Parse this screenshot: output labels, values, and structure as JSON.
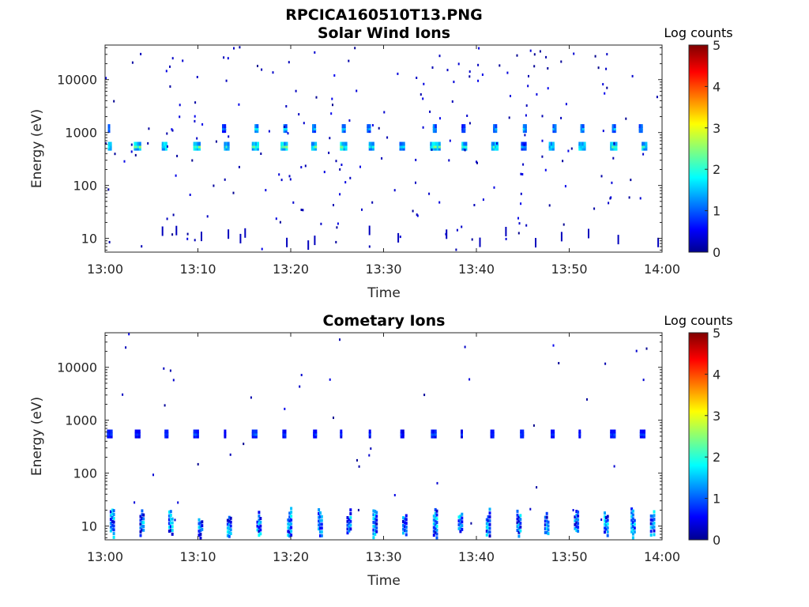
{
  "figure_title": "RPCICA160510T13.PNG",
  "chart_data": [
    {
      "type": "heatmap",
      "title": "Solar Wind Ions",
      "xlabel": "Time",
      "ylabel": "Energy (eV)",
      "x_ticks": [
        "13:00",
        "13:10",
        "13:20",
        "13:30",
        "13:40",
        "13:50",
        "14:00"
      ],
      "xlim": [
        "13:00",
        "14:00"
      ],
      "y_scale": "log",
      "y_ticks": [
        10,
        100,
        1000,
        10000
      ],
      "y_tick_labels": [
        "10",
        "100",
        "1000",
        "10000"
      ],
      "ylim": [
        5.5,
        45000
      ],
      "colorbar": {
        "label": "Log counts",
        "range": [
          0,
          5
        ],
        "ticks": [
          "0",
          "1",
          "2",
          "3",
          "4",
          "5"
        ],
        "colormap": "jet"
      },
      "bursts": [
        {
          "t": 0.3,
          "e": 600,
          "w": 0.4,
          "v": 2.0
        },
        {
          "t": 0.3,
          "e": 1300,
          "w": 0.25,
          "v": 1.6
        },
        {
          "t": 3.1,
          "e": 600,
          "w": 0.7,
          "v": 2.3
        },
        {
          "t": 6.1,
          "e": 600,
          "w": 0.6,
          "v": 2.2
        },
        {
          "t": 9.5,
          "e": 600,
          "w": 0.8,
          "v": 2.3
        },
        {
          "t": 12.8,
          "e": 600,
          "w": 0.5,
          "v": 2.0
        },
        {
          "t": 12.6,
          "e": 1300,
          "w": 0.3,
          "v": 1.2
        },
        {
          "t": 15.8,
          "e": 600,
          "w": 0.7,
          "v": 2.2
        },
        {
          "t": 16.1,
          "e": 1300,
          "w": 0.4,
          "v": 1.8
        },
        {
          "t": 18.9,
          "e": 600,
          "w": 0.8,
          "v": 2.3
        },
        {
          "t": 19.2,
          "e": 1300,
          "w": 0.4,
          "v": 1.7
        },
        {
          "t": 22.2,
          "e": 600,
          "w": 0.6,
          "v": 2.2
        },
        {
          "t": 22.3,
          "e": 1300,
          "w": 0.4,
          "v": 1.6
        },
        {
          "t": 25.3,
          "e": 600,
          "w": 0.8,
          "v": 2.4
        },
        {
          "t": 25.5,
          "e": 1300,
          "w": 0.4,
          "v": 1.7
        },
        {
          "t": 28.4,
          "e": 600,
          "w": 0.6,
          "v": 2.1
        },
        {
          "t": 28.2,
          "e": 1300,
          "w": 0.3,
          "v": 1.5
        },
        {
          "t": 31.7,
          "e": 600,
          "w": 0.5,
          "v": 1.9
        },
        {
          "t": 35.0,
          "e": 600,
          "w": 1.0,
          "v": 2.3
        },
        {
          "t": 35.3,
          "e": 1300,
          "w": 0.4,
          "v": 1.6
        },
        {
          "t": 38.4,
          "e": 600,
          "w": 0.6,
          "v": 2.0
        },
        {
          "t": 38.4,
          "e": 1300,
          "w": 0.3,
          "v": 1.1
        },
        {
          "t": 41.6,
          "e": 600,
          "w": 0.7,
          "v": 2.2
        },
        {
          "t": 41.8,
          "e": 1300,
          "w": 0.3,
          "v": 1.4
        },
        {
          "t": 44.8,
          "e": 600,
          "w": 0.6,
          "v": 1.4
        },
        {
          "t": 45.0,
          "e": 1300,
          "w": 0.3,
          "v": 1.6
        },
        {
          "t": 47.8,
          "e": 600,
          "w": 0.6,
          "v": 1.9
        },
        {
          "t": 48.2,
          "e": 1300,
          "w": 0.3,
          "v": 1.5
        },
        {
          "t": 51.0,
          "e": 600,
          "w": 0.7,
          "v": 2.2
        },
        {
          "t": 51.2,
          "e": 1300,
          "w": 0.4,
          "v": 1.7
        },
        {
          "t": 54.4,
          "e": 600,
          "w": 0.7,
          "v": 2.1
        },
        {
          "t": 54.6,
          "e": 1300,
          "w": 0.4,
          "v": 1.6
        },
        {
          "t": 57.8,
          "e": 600,
          "w": 0.6,
          "v": 2.0
        },
        {
          "t": 57.5,
          "e": 1300,
          "w": 0.4,
          "v": 1.5
        }
      ]
    },
    {
      "type": "heatmap",
      "title": "Cometary Ions",
      "xlabel": "Time",
      "ylabel": "Energy (eV)",
      "x_ticks": [
        "13:00",
        "13:10",
        "13:20",
        "13:30",
        "13:40",
        "13:50",
        "14:00"
      ],
      "xlim": [
        "13:00",
        "14:00"
      ],
      "y_scale": "log",
      "y_ticks": [
        10,
        100,
        1000,
        10000
      ],
      "y_tick_labels": [
        "10",
        "100",
        "1000",
        "10000"
      ],
      "ylim": [
        5.5,
        45000
      ],
      "colorbar": {
        "label": "Log counts",
        "range": [
          0,
          5
        ],
        "ticks": [
          "0",
          "1",
          "2",
          "3",
          "4",
          "5"
        ],
        "colormap": "jet"
      },
      "bursts": [
        {
          "t": 0.2,
          "e": 600,
          "w": 0.5,
          "v": 1.0
        },
        {
          "t": 3.2,
          "e": 600,
          "w": 0.5,
          "v": 0.9
        },
        {
          "t": 6.4,
          "e": 600,
          "w": 0.4,
          "v": 1.0
        },
        {
          "t": 9.5,
          "e": 600,
          "w": 0.5,
          "v": 1.0
        },
        {
          "t": 12.8,
          "e": 600,
          "w": 0.2,
          "v": 0.8
        },
        {
          "t": 15.8,
          "e": 600,
          "w": 0.5,
          "v": 1.1
        },
        {
          "t": 19.1,
          "e": 600,
          "w": 0.3,
          "v": 0.9
        },
        {
          "t": 22.4,
          "e": 600,
          "w": 0.4,
          "v": 0.9
        },
        {
          "t": 25.3,
          "e": 600,
          "w": 0.2,
          "v": 0.8
        },
        {
          "t": 28.4,
          "e": 600,
          "w": 0.2,
          "v": 0.8
        },
        {
          "t": 31.8,
          "e": 600,
          "w": 0.4,
          "v": 0.8
        },
        {
          "t": 35.1,
          "e": 600,
          "w": 0.5,
          "v": 1.0
        },
        {
          "t": 38.3,
          "e": 600,
          "w": 0.2,
          "v": 0.8
        },
        {
          "t": 41.5,
          "e": 600,
          "w": 0.3,
          "v": 0.9
        },
        {
          "t": 44.7,
          "e": 600,
          "w": 0.4,
          "v": 1.0
        },
        {
          "t": 48.0,
          "e": 600,
          "w": 0.3,
          "v": 0.8
        },
        {
          "t": 51.0,
          "e": 600,
          "w": 0.2,
          "v": 0.8
        },
        {
          "t": 54.4,
          "e": 600,
          "w": 0.5,
          "v": 1.0
        },
        {
          "t": 57.6,
          "e": 600,
          "w": 0.5,
          "v": 0.9
        }
      ],
      "low_energy_bursts": [
        0.5,
        3.7,
        6.8,
        10.0,
        13.1,
        16.3,
        19.6,
        22.9,
        26.0,
        28.8,
        32.0,
        35.3,
        38.0,
        41.0,
        44.3,
        47.3,
        50.5,
        53.7,
        56.6,
        58.7
      ]
    }
  ]
}
